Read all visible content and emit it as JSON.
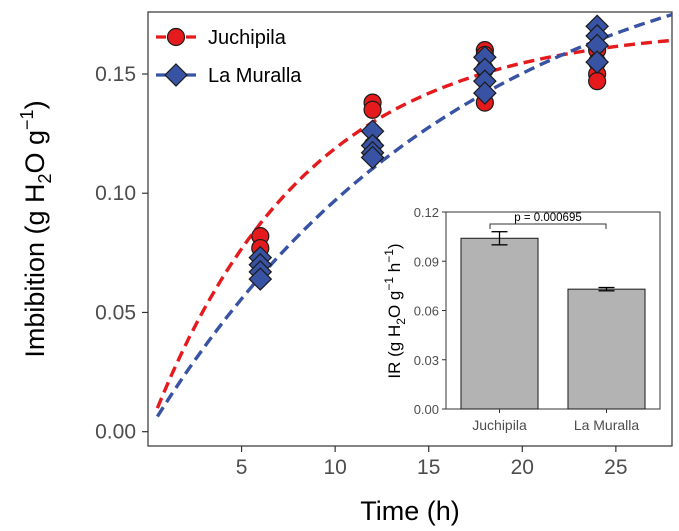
{
  "chart_data": [
    {
      "type": "scatter",
      "role": "main",
      "xlabel": "Time (h)",
      "ylabel_parts": {
        "prefix": "Imbibition (g H",
        "sub": "2",
        "mid": "O g",
        "sup": "−1",
        "suffix": ")"
      },
      "xlim": [
        0,
        28
      ],
      "ylim": [
        -0.006,
        0.176
      ],
      "xticks": [
        5,
        10,
        15,
        20,
        25
      ],
      "yticks": [
        0.0,
        0.05,
        0.1,
        0.15
      ],
      "ytick_labels": [
        "0.00",
        "0.05",
        "0.10",
        "0.15"
      ],
      "grid": false,
      "legend_position": "top-left",
      "series": [
        {
          "name": "Juchipila",
          "marker": "circle",
          "color": "#e41a1c",
          "x": [
            6,
            6,
            12,
            12,
            12,
            12,
            18,
            18,
            18,
            18,
            24,
            24,
            24,
            24
          ],
          "y": [
            0.082,
            0.077,
            0.138,
            0.135,
            0.12,
            0.117,
            0.16,
            0.158,
            0.152,
            0.138,
            0.16,
            0.155,
            0.15,
            0.147
          ]
        },
        {
          "name": "La Muralla",
          "marker": "diamond",
          "color": "#3953a4",
          "x": [
            6,
            6,
            6,
            6,
            12,
            12,
            12,
            12,
            18,
            18,
            18,
            18,
            24,
            24,
            24,
            24
          ],
          "y": [
            0.073,
            0.07,
            0.067,
            0.064,
            0.126,
            0.12,
            0.117,
            0.115,
            0.157,
            0.152,
            0.147,
            0.142,
            0.17,
            0.166,
            0.162,
            0.155
          ]
        }
      ],
      "fits": [
        {
          "series": "Juchipila",
          "style": "dashed",
          "color": "#e41a1c",
          "asymptote": 0.17,
          "rate": 0.12,
          "x_range": [
            0.5,
            28
          ]
        },
        {
          "series": "La Muralla",
          "style": "dashed",
          "color": "#3953a4",
          "asymptote": 0.215,
          "rate": 0.06,
          "x_range": [
            0.5,
            28
          ]
        }
      ]
    },
    {
      "type": "bar",
      "role": "inset",
      "ylabel_parts": {
        "prefix": "IR (g H",
        "sub": "2",
        "mid": "O g",
        "sup1": "−1",
        "mid2": " h",
        "sup2": "−1",
        "suffix": ")"
      },
      "categories": [
        "Juchipila",
        "La Muralla"
      ],
      "values": [
        0.104,
        0.073
      ],
      "errors": [
        0.004,
        0.001
      ],
      "bar_color": "#b3b3b3",
      "ylim": [
        0,
        0.12
      ],
      "yticks": [
        0.0,
        0.03,
        0.06,
        0.09,
        0.12
      ],
      "ytick_labels": [
        "0.00",
        "0.03",
        "0.06",
        "0.09",
        "0.12"
      ],
      "annotation": "p = 0.000695"
    }
  ]
}
